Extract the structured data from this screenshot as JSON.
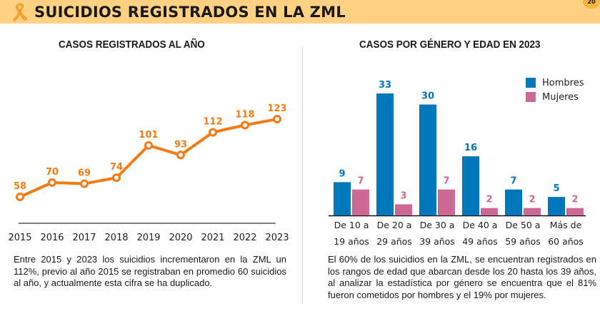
{
  "header": {
    "title": "SUICIDIOS REGISTRADOS EN LA ZML",
    "page_number": "20",
    "icon": "awareness-ribbon-icon",
    "background_color": "#ffd283"
  },
  "left_panel": {
    "title": "CASOS REGISTRADOS AL AÑO",
    "description": "Entre 2015 y 2023 los suicidios incrementaron en la ZML un 112%, previo al año 2015 se registraban en promedio 60 suicidios al año, y actualmente esta cifra se ha duplicado."
  },
  "right_panel": {
    "title": "CASOS POR GÉNERO Y EDAD EN 2023",
    "description": "El 60% de los suicidios en la ZML, se encuentran registrados en los rangos de edad que abarcan desde los 20 hasta los 39 años, al analizar la estadística por género se encuentra que el 81% fueron cometidos por hombres y el 19% por mujeres."
  },
  "chart_data": [
    {
      "type": "line",
      "title": "CASOS REGISTRADOS AL AÑO",
      "x": [
        "2015",
        "2016",
        "2017",
        "2018",
        "2019",
        "2020",
        "2021",
        "2022",
        "2023"
      ],
      "values": [
        58,
        70,
        69,
        74,
        101,
        93,
        112,
        118,
        123
      ],
      "xlabel": "",
      "ylabel": "",
      "ylim": [
        30,
        130
      ],
      "grid": false,
      "data_labels": true,
      "color": "#f57b16"
    },
    {
      "type": "bar",
      "title": "CASOS POR GÉNERO Y EDAD EN 2023",
      "categories": [
        [
          "De 10 a",
          "19 años"
        ],
        [
          "De 20 a",
          "29 años"
        ],
        [
          "De 30 a",
          "39 años"
        ],
        [
          "De 40 a",
          "49 años"
        ],
        [
          "De 50 a",
          "59 años"
        ],
        [
          "Más de",
          "60 años"
        ]
      ],
      "series": [
        {
          "name": "Hombres",
          "values": [
            9,
            33,
            30,
            16,
            7,
            5
          ],
          "color": "#0077bb"
        },
        {
          "name": "Mujeres",
          "values": [
            7,
            3,
            7,
            2,
            2,
            2
          ],
          "color": "#cc6893"
        }
      ],
      "ylim": [
        0,
        35
      ],
      "legend": "top-right",
      "grid": false,
      "data_labels": true
    }
  ]
}
